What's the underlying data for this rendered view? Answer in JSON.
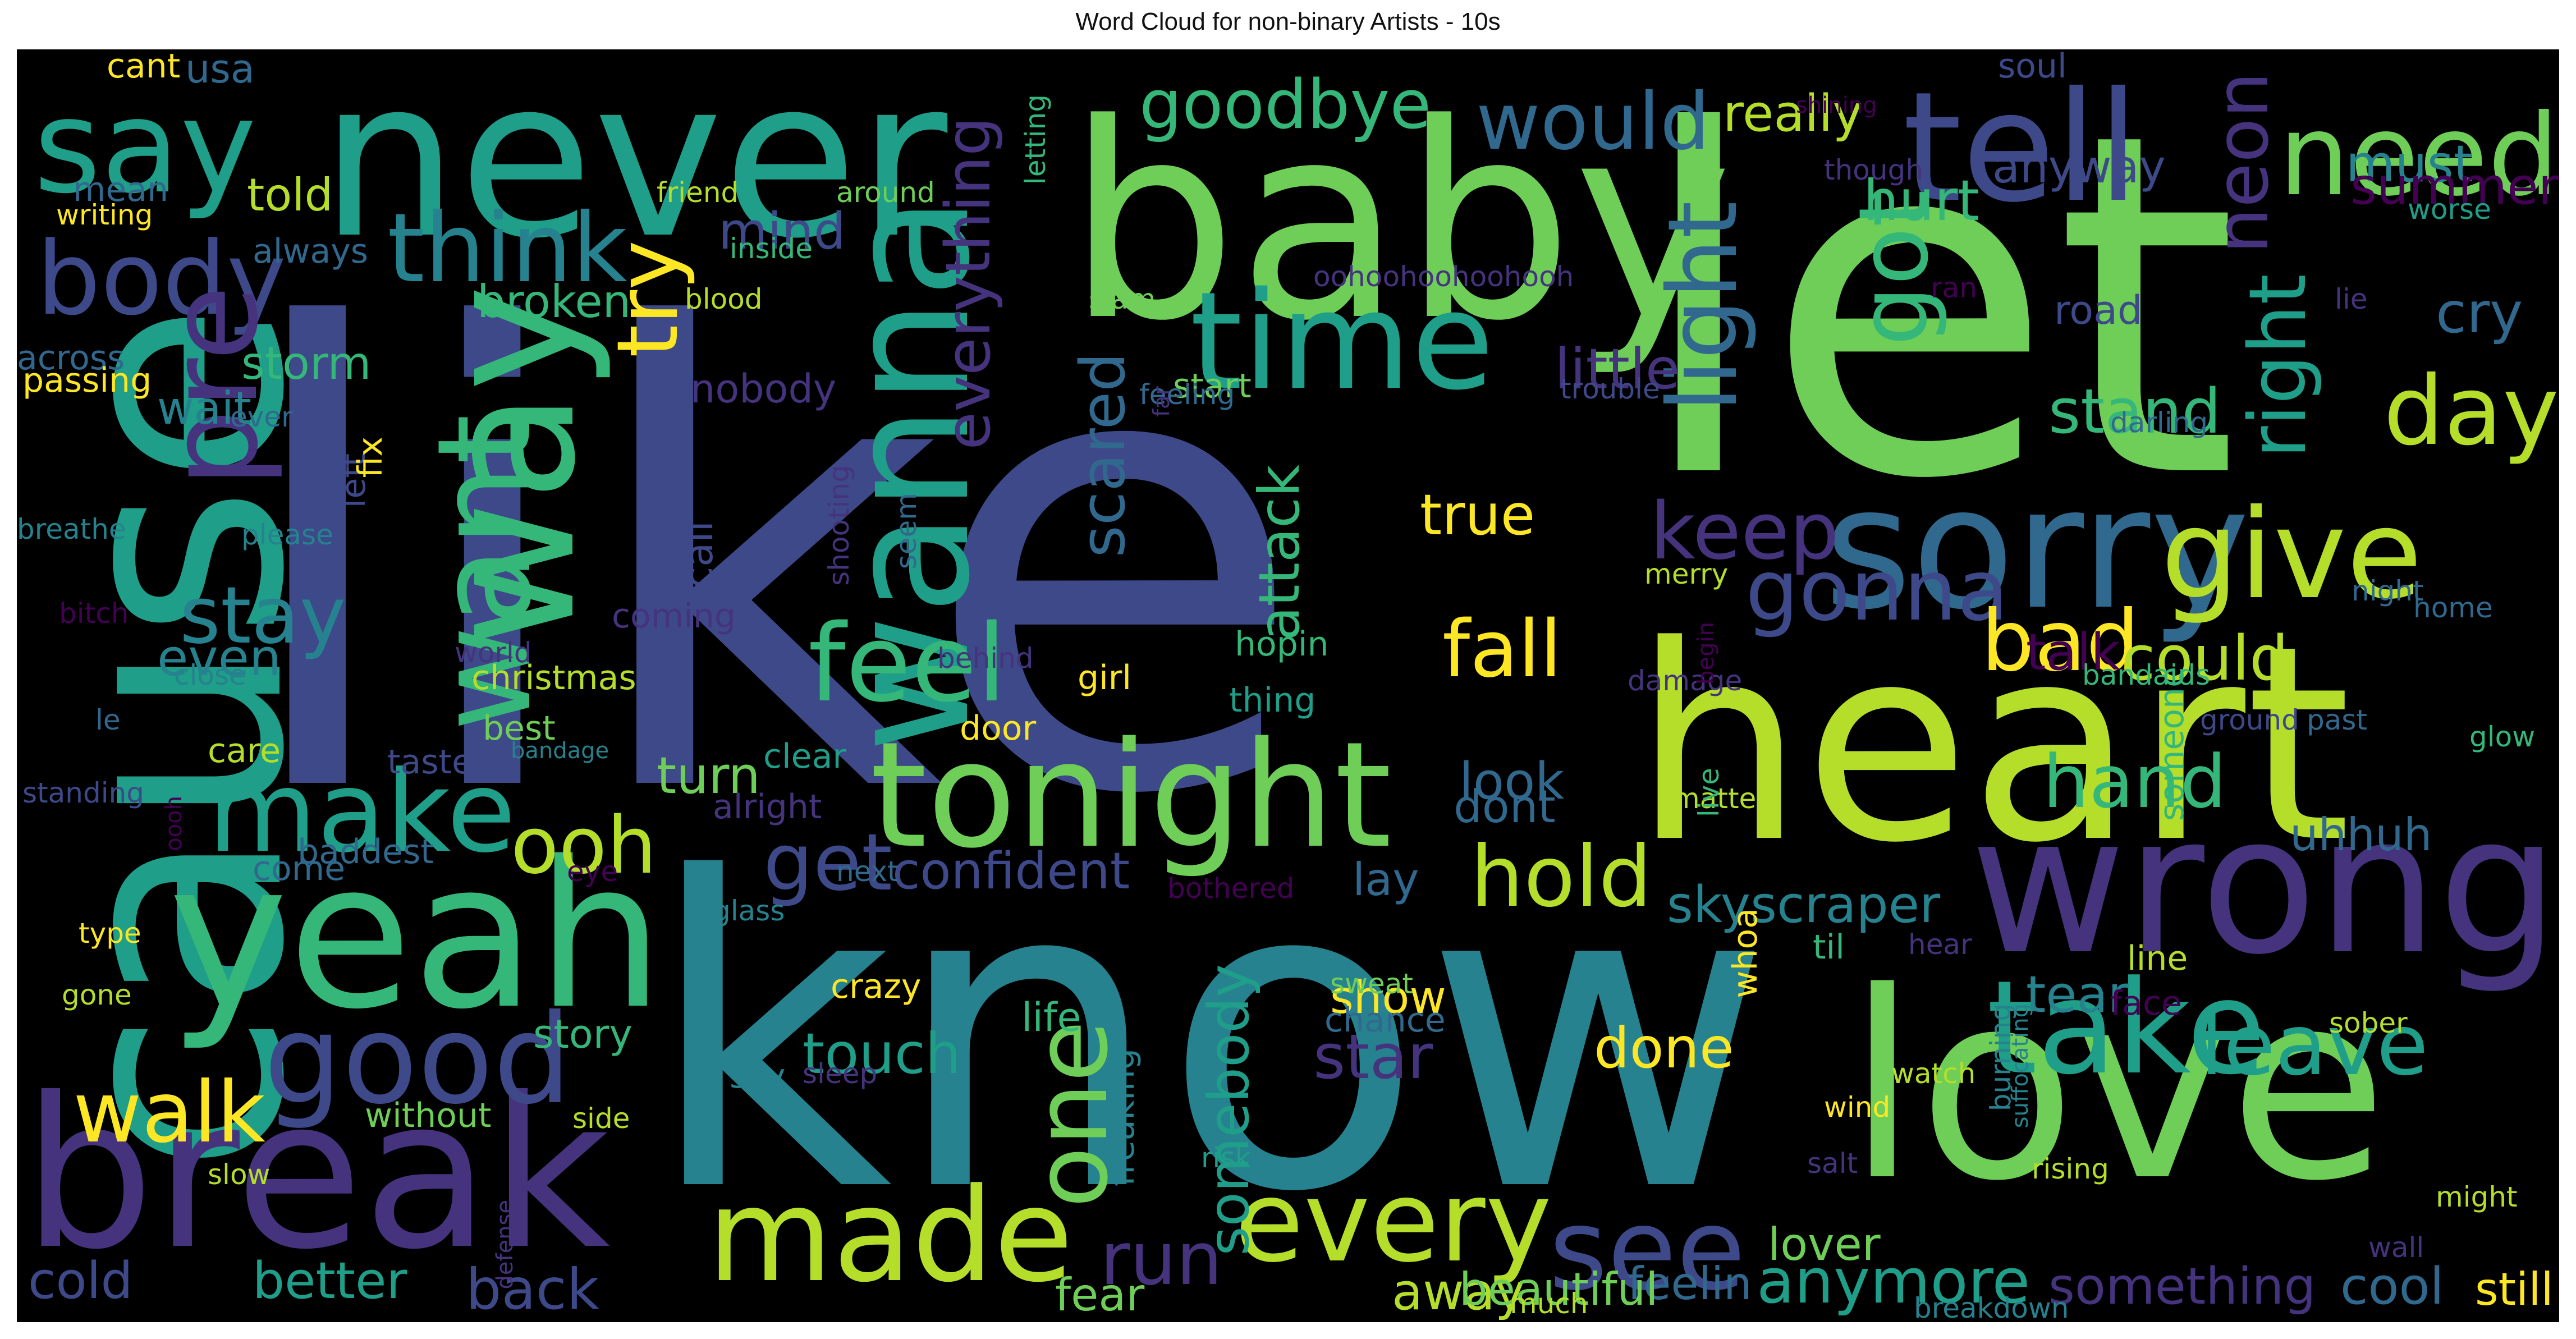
{
  "title": "Word Cloud for non-binary Artists - 10s",
  "colors": {
    "c0": "#440154",
    "c1": "#46337e",
    "c2": "#3e4989",
    "c3": "#31688e",
    "c4": "#26828e",
    "c5": "#1f9e89",
    "c6": "#35b779",
    "c7": "#6ece58",
    "c8": "#b5de2b",
    "c9": "#fde725"
  },
  "words": [
    {
      "t": "like",
      "c": "c2"
    },
    {
      "t": "know",
      "c": "c4"
    },
    {
      "t": "let",
      "c": "c7"
    },
    {
      "t": "baby",
      "c": "c7"
    },
    {
      "t": "heart",
      "c": "c8"
    },
    {
      "t": "love",
      "c": "c7"
    },
    {
      "t": "never",
      "c": "c5"
    },
    {
      "t": "cause",
      "c": "c5"
    },
    {
      "t": "break",
      "c": "c1"
    },
    {
      "t": "yeah",
      "c": "c6"
    },
    {
      "t": "wrong",
      "c": "c1"
    },
    {
      "t": "sorry",
      "c": "c3"
    },
    {
      "t": "tonight",
      "c": "c7"
    },
    {
      "t": "way",
      "c": "c6"
    },
    {
      "t": "wanna",
      "c": "c5"
    },
    {
      "t": "tell",
      "c": "c2"
    },
    {
      "t": "time",
      "c": "c5"
    },
    {
      "t": "made",
      "c": "c8"
    },
    {
      "t": "take",
      "c": "c5"
    },
    {
      "t": "say",
      "c": "c5"
    },
    {
      "t": "need",
      "c": "c7"
    },
    {
      "t": "good",
      "c": "c2"
    },
    {
      "t": "make",
      "c": "c5"
    },
    {
      "t": "give",
      "c": "c8"
    },
    {
      "t": "body",
      "c": "c2"
    },
    {
      "t": "every",
      "c": "c8"
    },
    {
      "t": "see",
      "c": "c2"
    },
    {
      "t": "pre",
      "c": "c1"
    },
    {
      "t": "want",
      "c": "c6"
    },
    {
      "t": "think",
      "c": "c4"
    },
    {
      "t": "feel",
      "c": "c6"
    },
    {
      "t": "one",
      "c": "c7"
    },
    {
      "t": "got",
      "c": "c6"
    },
    {
      "t": "walk",
      "c": "c9"
    },
    {
      "t": "leave",
      "c": "c5"
    },
    {
      "t": "gonna",
      "c": "c2"
    },
    {
      "t": "day",
      "c": "c8"
    },
    {
      "t": "hold",
      "c": "c8"
    },
    {
      "t": "fall",
      "c": "c9"
    },
    {
      "t": "try",
      "c": "c9"
    },
    {
      "t": "stay",
      "c": "c4"
    },
    {
      "t": "light",
      "c": "c3"
    },
    {
      "t": "bad",
      "c": "c9"
    },
    {
      "t": "keep",
      "c": "c1"
    },
    {
      "t": "run",
      "c": "c1"
    },
    {
      "t": "ooh",
      "c": "c8"
    },
    {
      "t": "get",
      "c": "c2"
    },
    {
      "t": "would",
      "c": "c3"
    },
    {
      "t": "goodbye",
      "c": "c6"
    },
    {
      "t": "hand",
      "c": "c6"
    },
    {
      "t": "neon",
      "c": "c1"
    },
    {
      "t": "right",
      "c": "c5"
    },
    {
      "t": "stand",
      "c": "c6"
    },
    {
      "t": "could",
      "c": "c8"
    },
    {
      "t": "hurt",
      "c": "c6"
    },
    {
      "t": "better",
      "c": "c5"
    },
    {
      "t": "touch",
      "c": "c5"
    },
    {
      "t": "everything",
      "c": "c1"
    },
    {
      "t": "confident",
      "c": "c2"
    },
    {
      "t": "back",
      "c": "c2"
    },
    {
      "t": "anymore",
      "c": "c5"
    },
    {
      "t": "cold",
      "c": "c2"
    },
    {
      "t": "must",
      "c": "c4"
    },
    {
      "t": "summer",
      "c": "c0"
    },
    {
      "t": "really",
      "c": "c8"
    },
    {
      "t": "cry",
      "c": "c3"
    },
    {
      "t": "true",
      "c": "c9"
    },
    {
      "t": "attack",
      "c": "c6"
    },
    {
      "t": "scared",
      "c": "c3"
    },
    {
      "t": "tear",
      "c": "c4"
    },
    {
      "t": "skyscraper",
      "c": "c4"
    },
    {
      "t": "star",
      "c": "c1"
    },
    {
      "t": "talk",
      "c": "c0"
    },
    {
      "t": "something",
      "c": "c1"
    },
    {
      "t": "little",
      "c": "c1"
    },
    {
      "t": "mind",
      "c": "c2"
    },
    {
      "t": "cool",
      "c": "c3"
    },
    {
      "t": "away",
      "c": "c8"
    },
    {
      "t": "look",
      "c": "c3"
    },
    {
      "t": "lay",
      "c": "c3"
    },
    {
      "t": "uhhuh",
      "c": "c3"
    },
    {
      "t": "done",
      "c": "c9"
    },
    {
      "t": "feelin",
      "c": "c3"
    },
    {
      "t": "somebody",
      "c": "c5"
    },
    {
      "t": "show",
      "c": "c9"
    },
    {
      "t": "beautiful",
      "c": "c7"
    },
    {
      "t": "fear",
      "c": "c7"
    },
    {
      "t": "still",
      "c": "c9"
    },
    {
      "t": "lover",
      "c": "c7"
    },
    {
      "t": "turn",
      "c": "c7"
    },
    {
      "t": "even",
      "c": "c4"
    },
    {
      "t": "road",
      "c": "c2"
    },
    {
      "t": "anyway",
      "c": "c2"
    },
    {
      "t": "storm",
      "c": "c6"
    },
    {
      "t": "wait",
      "c": "c4"
    },
    {
      "t": "broken",
      "c": "c6"
    },
    {
      "t": "told",
      "c": "c8"
    },
    {
      "t": "usa",
      "c": "c3"
    },
    {
      "t": "mean",
      "c": "c3"
    },
    {
      "t": "soul",
      "c": "c2"
    },
    {
      "t": "cant",
      "c": "c9"
    },
    {
      "t": "crazy",
      "c": "c9"
    },
    {
      "t": "life",
      "c": "c6"
    },
    {
      "t": "story",
      "c": "c6"
    },
    {
      "t": "call",
      "c": "c2"
    },
    {
      "t": "left",
      "c": "c2"
    },
    {
      "t": "fix",
      "c": "c9"
    },
    {
      "t": "dont",
      "c": "c3"
    },
    {
      "t": "taste",
      "c": "c2"
    },
    {
      "t": "nobody",
      "c": "c1"
    },
    {
      "t": "girl",
      "c": "c9"
    },
    {
      "t": "door",
      "c": "c9"
    },
    {
      "t": "hopin",
      "c": "c6"
    },
    {
      "t": "coming",
      "c": "c1"
    },
    {
      "t": "christmas",
      "c": "c8"
    },
    {
      "t": "best",
      "c": "c7"
    },
    {
      "t": "care",
      "c": "c8"
    },
    {
      "t": "baddest",
      "c": "c3"
    },
    {
      "t": "come",
      "c": "c3"
    },
    {
      "t": "without",
      "c": "c7"
    },
    {
      "t": "alright",
      "c": "c1"
    },
    {
      "t": "clear",
      "c": "c5"
    },
    {
      "t": "start",
      "c": "c7"
    },
    {
      "t": "thing",
      "c": "c5"
    },
    {
      "t": "across",
      "c": "c3"
    },
    {
      "t": "passing",
      "c": "c9"
    },
    {
      "t": "always",
      "c": "c3"
    },
    {
      "t": "writing",
      "c": "c9"
    },
    {
      "t": "friend",
      "c": "c8"
    },
    {
      "t": "around",
      "c": "c7"
    },
    {
      "t": "inside",
      "c": "c6"
    },
    {
      "t": "letting",
      "c": "c6"
    },
    {
      "t": "slam",
      "c": "c7"
    },
    {
      "t": "oohoohoohoohooh",
      "c": "c1"
    },
    {
      "t": "blood",
      "c": "c8"
    },
    {
      "t": "feeling",
      "c": "c3"
    },
    {
      "t": "far",
      "c": "c1"
    },
    {
      "t": "shooting",
      "c": "c1"
    },
    {
      "t": "trouble",
      "c": "c2"
    },
    {
      "t": "darling",
      "c": "c3"
    },
    {
      "t": "lie",
      "c": "c1"
    },
    {
      "t": "worse",
      "c": "c5"
    },
    {
      "t": "though",
      "c": "c1"
    },
    {
      "t": "ran",
      "c": "c0"
    },
    {
      "t": "shining",
      "c": "c0"
    },
    {
      "t": "ever",
      "c": "c3"
    },
    {
      "t": "breathe",
      "c": "c4"
    },
    {
      "t": "please",
      "c": "c4"
    },
    {
      "t": "bitch",
      "c": "c0"
    },
    {
      "t": "close",
      "c": "c4"
    },
    {
      "t": "le",
      "c": "c3"
    },
    {
      "t": "standing",
      "c": "c2"
    },
    {
      "t": "world",
      "c": "c1"
    },
    {
      "t": "behind",
      "c": "c1"
    },
    {
      "t": "bandage",
      "c": "c4"
    },
    {
      "t": "sweat",
      "c": "c7"
    },
    {
      "t": "chance",
      "c": "c3"
    },
    {
      "t": "sky",
      "c": "c4"
    },
    {
      "t": "sleep",
      "c": "c1"
    },
    {
      "t": "freaking",
      "c": "c4"
    },
    {
      "t": "risk",
      "c": "c5"
    },
    {
      "t": "much",
      "c": "c8"
    },
    {
      "t": "defense",
      "c": "c1"
    },
    {
      "t": "side",
      "c": "c8"
    },
    {
      "t": "slow",
      "c": "c8"
    },
    {
      "t": "eye",
      "c": "c0"
    },
    {
      "t": "next",
      "c": "c3"
    },
    {
      "t": "bothered",
      "c": "c0"
    },
    {
      "t": "glass",
      "c": "c4"
    },
    {
      "t": "whoa",
      "c": "c9"
    },
    {
      "t": "til",
      "c": "c6"
    },
    {
      "t": "hear",
      "c": "c1"
    },
    {
      "t": "line",
      "c": "c8"
    },
    {
      "t": "face",
      "c": "c0"
    },
    {
      "t": "sober",
      "c": "c8"
    },
    {
      "t": "watch",
      "c": "c8"
    },
    {
      "t": "wind",
      "c": "c9"
    },
    {
      "t": "burning",
      "c": "c4"
    },
    {
      "t": "suffocating",
      "c": "c4"
    },
    {
      "t": "rising",
      "c": "c8"
    },
    {
      "t": "salt",
      "c": "c1"
    },
    {
      "t": "might",
      "c": "c8"
    },
    {
      "t": "wall",
      "c": "c1"
    },
    {
      "t": "breakdown",
      "c": "c4"
    },
    {
      "t": "matter",
      "c": "c8"
    },
    {
      "t": "live",
      "c": "c6"
    },
    {
      "t": "someone",
      "c": "c6"
    },
    {
      "t": "bandaids",
      "c": "c6"
    },
    {
      "t": "damage",
      "c": "c1"
    },
    {
      "t": "begin",
      "c": "c0"
    },
    {
      "t": "past",
      "c": "c3"
    },
    {
      "t": "ground",
      "c": "c2"
    },
    {
      "t": "glow",
      "c": "c6"
    },
    {
      "t": "night",
      "c": "c3"
    },
    {
      "t": "home",
      "c": "c3"
    },
    {
      "t": "merry",
      "c": "c8"
    },
    {
      "t": "seem",
      "c": "c3"
    },
    {
      "t": "type",
      "c": "c9"
    },
    {
      "t": "gone",
      "c": "c8"
    },
    {
      "t": "oooh",
      "c": "c0"
    }
  ]
}
